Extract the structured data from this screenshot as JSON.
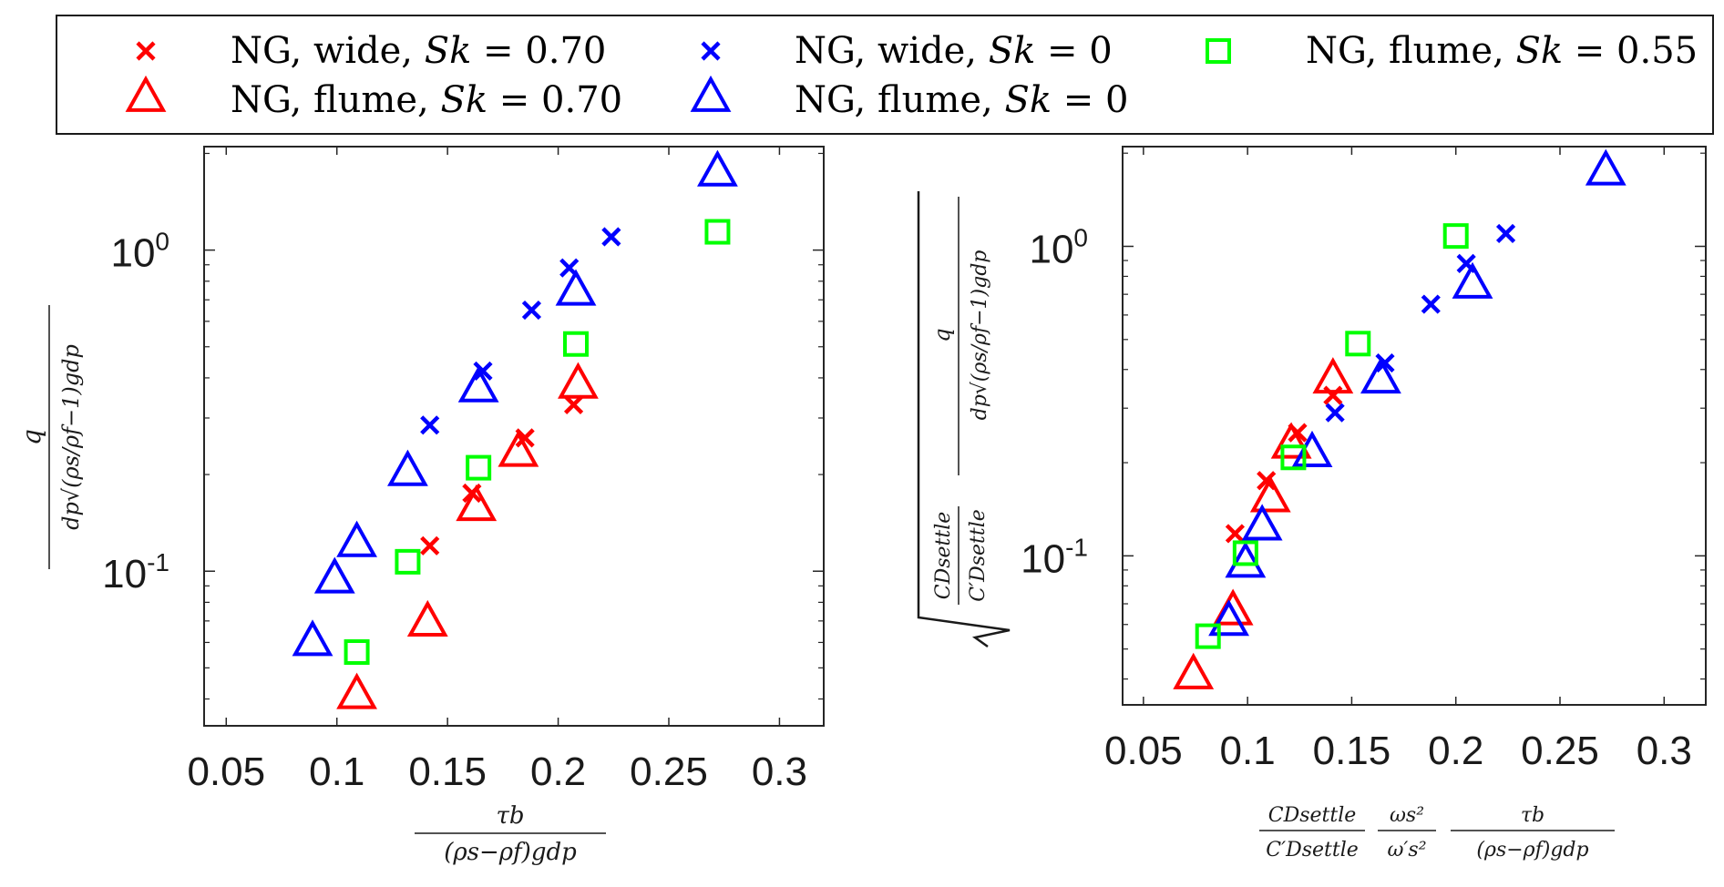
{
  "legend": {
    "entries": [
      {
        "label_prefix": "NG, wide, ",
        "label_var": "Sk",
        "label_value": " = 0.70",
        "marker": "x",
        "color": "#ff0000"
      },
      {
        "label_prefix": "NG, flume, ",
        "label_var": "Sk",
        "label_value": " = 0.70",
        "marker": "triangle",
        "color": "#ff0000"
      },
      {
        "label_prefix": "NG, wide, ",
        "label_var": "Sk",
        "label_value": " = 0",
        "marker": "x",
        "color": "#0000ff"
      },
      {
        "label_prefix": "NG, flume, ",
        "label_var": "Sk",
        "label_value": " = 0",
        "marker": "triangle",
        "color": "#0000ff"
      },
      {
        "label_prefix": "NG, flume, ",
        "label_var": "Sk",
        "label_value": " = 0.55",
        "marker": "square",
        "color": "#00ff00"
      }
    ]
  },
  "chart_data": [
    {
      "type": "scatter",
      "xlim": [
        0.04,
        0.32
      ],
      "ylim": [
        0.033,
        2.1
      ],
      "yscale": "log",
      "grid": false,
      "xticks": [
        0.05,
        0.1,
        0.15,
        0.2,
        0.25,
        0.3
      ],
      "xtick_labels": [
        "0.05",
        "0.1",
        "0.15",
        "0.2",
        "0.25",
        "0.3"
      ],
      "yticks": [
        0.1,
        1.0
      ],
      "ytick_labels": [
        {
          "base": "10",
          "exp": "-1"
        },
        {
          "base": "10",
          "exp": "0"
        }
      ],
      "xlabel": {
        "num": "τb",
        "den": "(ρs−ρf)gdp"
      },
      "ylabel": {
        "num": "q",
        "den": "dp√(ρs/ρf−1)gdp"
      },
      "series": [
        {
          "name": "NG, wide, Sk = 0.70",
          "marker": "x",
          "color": "#ff0000",
          "x": [
            0.142,
            0.161,
            0.185,
            0.207
          ],
          "y": [
            0.12,
            0.175,
            0.26,
            0.33
          ]
        },
        {
          "name": "NG, flume, Sk = 0.70",
          "marker": "triangle",
          "color": "#ff0000",
          "x": [
            0.109,
            0.141,
            0.163,
            0.182,
            0.209
          ],
          "y": [
            0.041,
            0.069,
            0.158,
            0.233,
            0.38
          ]
        },
        {
          "name": "NG, wide, Sk = 0",
          "marker": "x",
          "color": "#0000ff",
          "x": [
            0.142,
            0.166,
            0.188,
            0.205,
            0.224
          ],
          "y": [
            0.285,
            0.42,
            0.65,
            0.88,
            1.1
          ]
        },
        {
          "name": "NG, flume, Sk = 0",
          "marker": "triangle",
          "color": "#0000ff",
          "x": [
            0.089,
            0.099,
            0.109,
            0.132,
            0.164,
            0.208,
            0.272
          ],
          "y": [
            0.06,
            0.094,
            0.122,
            0.203,
            0.37,
            0.74,
            1.74
          ]
        },
        {
          "name": "NG, flume, Sk = 0.55",
          "marker": "square",
          "color": "#00ff00",
          "x": [
            0.109,
            0.132,
            0.164,
            0.208,
            0.272
          ],
          "y": [
            0.056,
            0.107,
            0.21,
            0.51,
            1.14
          ]
        }
      ]
    },
    {
      "type": "scatter",
      "xlim": [
        0.04,
        0.32
      ],
      "ylim": [
        0.033,
        2.1
      ],
      "yscale": "log",
      "grid": false,
      "xticks": [
        0.05,
        0.1,
        0.15,
        0.2,
        0.25,
        0.3
      ],
      "xtick_labels": [
        "0.05",
        "0.1",
        "0.15",
        "0.2",
        "0.25",
        "0.3"
      ],
      "yticks": [
        0.1,
        1.0
      ],
      "ytick_labels": [
        {
          "base": "10",
          "exp": "-1"
        },
        {
          "base": "10",
          "exp": "0"
        }
      ],
      "xlabel": {
        "f1_num": "CDsettle",
        "f1_den": "C′Dsettle",
        "f2_num": "ωs²",
        "f2_den": "ω′s²",
        "f3_num": "τb",
        "f3_den": "(ρs−ρf)gdp"
      },
      "ylabel": {
        "root_num": "CDsettle",
        "root_den": "C′Dsettle",
        "num": "q",
        "den": "dp√(ρs/ρf−1)gdp"
      },
      "series": [
        {
          "name": "NG, wide, Sk = 0.70",
          "marker": "x",
          "color": "#ff0000",
          "x": [
            0.094,
            0.109,
            0.124,
            0.141
          ],
          "y": [
            0.118,
            0.175,
            0.25,
            0.33
          ]
        },
        {
          "name": "NG, flume, Sk = 0.70",
          "marker": "triangle",
          "color": "#ff0000",
          "x": [
            0.074,
            0.093,
            0.111,
            0.121,
            0.141
          ],
          "y": [
            0.041,
            0.066,
            0.153,
            0.228,
            0.37
          ]
        },
        {
          "name": "NG, wide, Sk = 0",
          "marker": "x",
          "color": "#0000ff",
          "x": [
            0.142,
            0.166,
            0.188,
            0.205,
            0.224
          ],
          "y": [
            0.29,
            0.42,
            0.65,
            0.88,
            1.1
          ]
        },
        {
          "name": "NG, flume, Sk = 0",
          "marker": "triangle",
          "color": "#0000ff",
          "x": [
            0.091,
            0.099,
            0.107,
            0.131,
            0.164,
            0.208,
            0.272
          ],
          "y": [
            0.061,
            0.094,
            0.124,
            0.214,
            0.37,
            0.75,
            1.74
          ]
        },
        {
          "name": "NG, flume, Sk = 0.55",
          "marker": "square",
          "color": "#00ff00",
          "x": [
            0.081,
            0.099,
            0.122,
            0.153,
            0.2
          ],
          "y": [
            0.055,
            0.102,
            0.208,
            0.485,
            1.08
          ]
        }
      ]
    }
  ]
}
